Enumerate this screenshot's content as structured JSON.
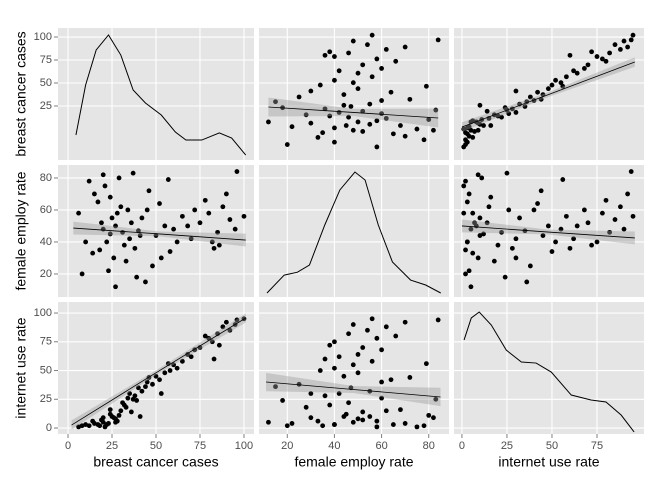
{
  "chart_data": {
    "type": "scatter_matrix",
    "variables": [
      "breast cancer cases",
      "female employ rate",
      "internet use rate"
    ],
    "xlims": [
      [
        -5.7,
        105.7
      ],
      [
        8,
        88.6
      ],
      [
        -4.4,
        101.1
      ]
    ],
    "xticks": [
      [
        0,
        25,
        50,
        75,
        100
      ],
      [
        20,
        40,
        60,
        80
      ],
      [
        0,
        25,
        50,
        75
      ]
    ],
    "ylims": [
      [
        -33.7,
        109.8
      ],
      [
        5.6,
        88.1
      ],
      [
        -5.2,
        109.6
      ]
    ],
    "yticks": [
      [
        25,
        50,
        75,
        100
      ],
      [
        20,
        40,
        60,
        80
      ],
      [
        0,
        25,
        50,
        75,
        100
      ]
    ],
    "scatter_ylims": [
      [
        -5,
        106
      ],
      [
        5.6,
        88.1
      ],
      [
        -5.2,
        109.6
      ]
    ],
    "data": [
      [
        20,
        25,
        22,
        30,
        18,
        27,
        24,
        15,
        32,
        28,
        35,
        21,
        26,
        19,
        40,
        45,
        50,
        38,
        42,
        55,
        48,
        60,
        65,
        70,
        75,
        80,
        85,
        88,
        92,
        95,
        82,
        78,
        90,
        100,
        86,
        72,
        23,
        29,
        17,
        33,
        12,
        37,
        44,
        6,
        10,
        14,
        31,
        36,
        52,
        58,
        46,
        62,
        68,
        8,
        24,
        34,
        41,
        53,
        27,
        96,
        57,
        83,
        39,
        20
      ],
      [
        48,
        55,
        40,
        62,
        35,
        50,
        45,
        70,
        38,
        58,
        42,
        75,
        30,
        52,
        47,
        60,
        44,
        36,
        55,
        50,
        25,
        48,
        56,
        42,
        52,
        58,
        46,
        62,
        54,
        48,
        40,
        66,
        70,
        56,
        38,
        60,
        22,
        80,
        65,
        28,
        78,
        83,
        15,
        58,
        40,
        33,
        46,
        52,
        64,
        34,
        72,
        40,
        50,
        20,
        68,
        60,
        44,
        30,
        12,
        84,
        79,
        36,
        18,
        82
      ],
      [
        5,
        10,
        3,
        15,
        2,
        8,
        12,
        4,
        20,
        6,
        30,
        1,
        9,
        7,
        35,
        40,
        45,
        28,
        32,
        48,
        38,
        55,
        58,
        62,
        70,
        78,
        82,
        88,
        85,
        90,
        75,
        80,
        92,
        95,
        72,
        68,
        4,
        11,
        3,
        18,
        2,
        25,
        36,
        1,
        3,
        6,
        22,
        14,
        42,
        50,
        44,
        52,
        64,
        2,
        16,
        26,
        10,
        30,
        5,
        94,
        56,
        60,
        24,
        9
      ]
    ],
    "densities": [
      {
        "x": [
          4.5,
          10,
          16,
          23,
          30,
          37,
          44,
          53,
          61,
          67,
          76,
          86,
          93,
          101
        ],
        "values": [
          -6.5,
          47.8,
          85.9,
          102.2,
          80.4,
          42.4,
          28.3,
          15.2,
          -3.3,
          -12,
          -12,
          -4.3,
          -9.8,
          -28.3
        ]
      },
      {
        "x": [
          11.4,
          18.7,
          24.3,
          29.4,
          35.9,
          42.3,
          48.7,
          53,
          58.6,
          64.6,
          72.3,
          78.7,
          85.1
        ],
        "values": [
          8.1,
          19.3,
          21.1,
          25.6,
          50.6,
          72.5,
          83.7,
          78.7,
          50.6,
          27.5,
          16.2,
          13.1,
          8.1
        ]
      },
      {
        "x": [
          1.2,
          5.2,
          9.6,
          16.3,
          24.6,
          33,
          41.2,
          49.6,
          60.7,
          71.7,
          80,
          88.4,
          95.6
        ],
        "values": [
          76.6,
          95.7,
          100.9,
          89.6,
          67.8,
          57.4,
          56.5,
          48.7,
          28.7,
          24.4,
          22.6,
          11.3,
          -3.4
        ]
      }
    ],
    "fits": [
      [
        null,
        {
          "x": [
            12,
            48,
            84
          ],
          "values": [
            39.6,
            35,
            30.3
          ],
          "lower": [
            31.6,
            32,
            22.3
          ],
          "upper": [
            47.6,
            38,
            38.3
          ]
        },
        {
          "x": [
            0,
            48,
            96
          ],
          "values": [
            22.7,
            50,
            77.4
          ],
          "lower": [
            18.7,
            48,
            73.4
          ],
          "upper": [
            26.7,
            52,
            81.4
          ]
        }
      ],
      [
        {
          "x": [
            3,
            52,
            101
          ],
          "values": [
            48.7,
            45,
            41.2
          ],
          "lower": [
            44.7,
            43.5,
            37.2
          ],
          "upper": [
            52.7,
            46.5,
            45.2
          ]
        },
        null,
        {
          "x": [
            0,
            48,
            96
          ],
          "values": [
            50,
            46.2,
            42.5
          ],
          "lower": [
            46,
            44.7,
            38.5
          ],
          "upper": [
            54,
            47.7,
            46.5
          ]
        }
      ],
      [
        {
          "x": [
            2,
            51,
            101
          ],
          "values": [
            2.6,
            49,
            95.7
          ],
          "lower": [
            -1.4,
            47,
            91.7
          ],
          "upper": [
            6.6,
            51,
            99.7
          ]
        },
        {
          "x": [
            11,
            48,
            85
          ],
          "values": [
            40,
            33.5,
            27
          ],
          "lower": [
            32,
            30.5,
            19
          ],
          "upper": [
            48,
            36.5,
            35
          ]
        },
        null
      ]
    ],
    "color": "#000000",
    "band_color": "#999999",
    "panel_color": "#e5e5e5",
    "grid": true
  }
}
